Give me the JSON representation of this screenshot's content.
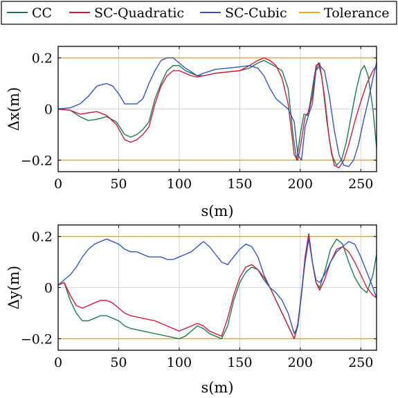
{
  "legend": {
    "entries": [
      {
        "name": "CC",
        "color": "#1a7a4c"
      },
      {
        "name": "SC-Quadratic",
        "color": "#d6173a"
      },
      {
        "name": "SC-Cubic",
        "color": "#2f55c4"
      },
      {
        "name": "Tolerance",
        "color": "#f2a516"
      }
    ]
  },
  "chart_data": [
    {
      "type": "line",
      "xlabel": "s(m)",
      "ylabel": "Δx(m)",
      "xlim": [
        0,
        263
      ],
      "ylim": [
        -0.245,
        0.245
      ],
      "xticks": [
        0,
        50,
        100,
        150,
        200,
        250
      ],
      "xtick_labels": [
        "0",
        "50",
        "100",
        "150",
        "200",
        "250"
      ],
      "yticks": [
        -0.2,
        0,
        0.2
      ],
      "ytick_labels": [
        "−0.2",
        "0",
        "0.2"
      ],
      "grid": true,
      "tolerance": [
        0.2,
        -0.2
      ],
      "series": [
        {
          "name": "CC",
          "color": "#1a7a4c",
          "x": [
            0,
            10,
            18,
            25,
            32,
            40,
            48,
            55,
            60,
            65,
            70,
            75,
            80,
            85,
            90,
            95,
            100,
            105,
            110,
            115,
            120,
            130,
            140,
            150,
            158,
            165,
            170,
            178,
            185,
            190,
            194,
            197,
            200,
            203,
            206,
            208,
            212,
            215,
            218,
            222,
            226,
            230,
            234,
            238,
            242,
            246,
            250,
            253,
            256,
            260,
            263
          ],
          "y": [
            0,
            -0.005,
            -0.03,
            -0.045,
            -0.04,
            -0.03,
            -0.05,
            -0.1,
            -0.11,
            -0.1,
            -0.08,
            -0.05,
            0.04,
            0.1,
            0.15,
            0.17,
            0.17,
            0.15,
            0.14,
            0.13,
            0.13,
            0.14,
            0.145,
            0.15,
            0.16,
            0.18,
            0.19,
            0.17,
            0.15,
            0.08,
            -0.1,
            -0.2,
            -0.1,
            -0.02,
            -0.025,
            0.02,
            0.14,
            0.18,
            0.12,
            -0.05,
            -0.18,
            -0.22,
            -0.2,
            -0.13,
            -0.03,
            0.07,
            0.15,
            0.17,
            0.13,
            0.0,
            -0.15
          ]
        },
        {
          "name": "SC-Quadratic",
          "color": "#d6173a",
          "x": [
            0,
            10,
            18,
            25,
            32,
            40,
            48,
            55,
            60,
            65,
            70,
            75,
            80,
            85,
            90,
            95,
            100,
            105,
            110,
            115,
            120,
            130,
            140,
            150,
            158,
            165,
            170,
            175,
            180,
            185,
            190,
            195,
            198,
            201,
            204,
            207,
            210,
            213,
            216,
            220,
            224,
            228,
            232,
            236,
            240,
            245,
            250,
            255,
            260,
            263
          ],
          "y": [
            0,
            -0.005,
            -0.02,
            -0.015,
            -0.01,
            -0.025,
            -0.06,
            -0.12,
            -0.13,
            -0.12,
            -0.1,
            -0.07,
            0.02,
            0.09,
            0.13,
            0.15,
            0.15,
            0.14,
            0.13,
            0.125,
            0.13,
            0.14,
            0.145,
            0.15,
            0.17,
            0.19,
            0.2,
            0.19,
            0.17,
            0.12,
            0.02,
            -0.18,
            -0.2,
            -0.12,
            -0.03,
            -0.01,
            0.05,
            0.17,
            0.18,
            0.05,
            -0.12,
            -0.22,
            -0.23,
            -0.2,
            -0.14,
            -0.05,
            0.03,
            0.1,
            0.15,
            0.17
          ]
        },
        {
          "name": "SC-Cubic",
          "color": "#2f55c4",
          "x": [
            0,
            10,
            18,
            25,
            32,
            40,
            45,
            50,
            55,
            60,
            65,
            70,
            75,
            80,
            85,
            90,
            95,
            100,
            105,
            110,
            115,
            120,
            130,
            140,
            150,
            158,
            165,
            170,
            175,
            180,
            185,
            190,
            195,
            198,
            201,
            204,
            207,
            210,
            213,
            216,
            220,
            224,
            228,
            232,
            236,
            240,
            244,
            248,
            252,
            256,
            260,
            263
          ],
          "y": [
            0,
            0.005,
            0.02,
            0.05,
            0.09,
            0.1,
            0.09,
            0.06,
            0.02,
            0.02,
            0.02,
            0.04,
            0.1,
            0.15,
            0.19,
            0.2,
            0.2,
            0.18,
            0.16,
            0.145,
            0.13,
            0.14,
            0.155,
            0.16,
            0.165,
            0.17,
            0.16,
            0.13,
            0.08,
            0.04,
            0.02,
            0.0,
            -0.05,
            -0.18,
            -0.2,
            -0.07,
            -0.02,
            0.02,
            0.15,
            0.17,
            0.15,
            0.05,
            -0.08,
            -0.18,
            -0.22,
            -0.225,
            -0.2,
            -0.14,
            -0.05,
            0.03,
            0.12,
            0.18
          ]
        },
        {
          "name": "Tolerance",
          "color": "#f2a516",
          "x": [
            0,
            263
          ],
          "y": [
            0.2,
            0.2
          ]
        }
      ]
    },
    {
      "type": "line",
      "xlabel": "s(m)",
      "ylabel": "Δy(m)",
      "xlim": [
        0,
        263
      ],
      "ylim": [
        -0.245,
        0.245
      ],
      "xticks": [
        0,
        50,
        100,
        150,
        200,
        250
      ],
      "xtick_labels": [
        "0",
        "50",
        "100",
        "150",
        "200",
        "250"
      ],
      "yticks": [
        -0.2,
        0,
        0.2
      ],
      "ytick_labels": [
        "−0.2",
        "0",
        "0.2"
      ],
      "grid": true,
      "tolerance": [
        0.2,
        -0.2
      ],
      "series": [
        {
          "name": "CC",
          "color": "#1a7a4c",
          "x": [
            0,
            5,
            10,
            15,
            20,
            25,
            30,
            35,
            40,
            45,
            50,
            55,
            60,
            70,
            80,
            90,
            100,
            105,
            110,
            115,
            120,
            125,
            130,
            135,
            140,
            145,
            150,
            155,
            160,
            165,
            170,
            175,
            180,
            185,
            190,
            195,
            198,
            201,
            204,
            207,
            210,
            213,
            216,
            220,
            225,
            230,
            235,
            240,
            245,
            250,
            255,
            260,
            263
          ],
          "y": [
            0.01,
            0.02,
            -0.05,
            -0.1,
            -0.13,
            -0.13,
            -0.12,
            -0.11,
            -0.11,
            -0.12,
            -0.13,
            -0.15,
            -0.16,
            -0.17,
            -0.18,
            -0.19,
            -0.2,
            -0.19,
            -0.17,
            -0.15,
            -0.16,
            -0.18,
            -0.19,
            -0.2,
            -0.15,
            -0.05,
            0.02,
            0.06,
            0.08,
            0.07,
            0.03,
            0.0,
            -0.05,
            -0.1,
            -0.15,
            -0.2,
            -0.15,
            -0.03,
            0.12,
            0.21,
            0.1,
            0.02,
            0.0,
            0.06,
            0.15,
            0.19,
            0.17,
            0.1,
            0.04,
            0.0,
            -0.02,
            0.05,
            0.13
          ]
        },
        {
          "name": "SC-Quadratic",
          "color": "#d6173a",
          "x": [
            0,
            5,
            10,
            15,
            20,
            25,
            30,
            35,
            40,
            45,
            50,
            55,
            60,
            70,
            80,
            90,
            100,
            105,
            110,
            115,
            120,
            125,
            130,
            135,
            140,
            145,
            150,
            155,
            160,
            165,
            170,
            175,
            180,
            185,
            190,
            195,
            198,
            201,
            204,
            207,
            210,
            213,
            216,
            220,
            225,
            230,
            235,
            240,
            245,
            250,
            255,
            260,
            263
          ],
          "y": [
            0.01,
            0.02,
            -0.03,
            -0.07,
            -0.08,
            -0.07,
            -0.06,
            -0.05,
            -0.05,
            -0.06,
            -0.08,
            -0.1,
            -0.11,
            -0.12,
            -0.13,
            -0.15,
            -0.17,
            -0.16,
            -0.15,
            -0.14,
            -0.15,
            -0.17,
            -0.18,
            -0.19,
            -0.12,
            -0.03,
            0.04,
            0.08,
            0.09,
            0.07,
            0.04,
            0.0,
            -0.05,
            -0.1,
            -0.15,
            -0.2,
            -0.14,
            -0.02,
            0.12,
            0.21,
            0.1,
            0.02,
            -0.01,
            0.03,
            0.1,
            0.15,
            0.16,
            0.14,
            0.1,
            0.05,
            0.0,
            -0.03,
            -0.04
          ]
        },
        {
          "name": "SC-Cubic",
          "color": "#2f55c4",
          "x": [
            0,
            5,
            10,
            15,
            20,
            25,
            30,
            35,
            40,
            45,
            50,
            55,
            60,
            65,
            70,
            75,
            80,
            85,
            90,
            95,
            100,
            105,
            110,
            115,
            120,
            125,
            130,
            135,
            140,
            145,
            150,
            155,
            160,
            165,
            170,
            175,
            180,
            185,
            190,
            195,
            198,
            201,
            204,
            207,
            210,
            213,
            216,
            220,
            225,
            230,
            235,
            240,
            245,
            250,
            255,
            260,
            263
          ],
          "y": [
            0.01,
            0.03,
            0.05,
            0.08,
            0.12,
            0.15,
            0.17,
            0.18,
            0.19,
            0.18,
            0.17,
            0.15,
            0.14,
            0.14,
            0.13,
            0.12,
            0.12,
            0.12,
            0.11,
            0.11,
            0.12,
            0.13,
            0.14,
            0.16,
            0.18,
            0.16,
            0.13,
            0.1,
            0.09,
            0.12,
            0.15,
            0.17,
            0.16,
            0.12,
            0.05,
            0.0,
            -0.02,
            -0.05,
            -0.1,
            -0.18,
            -0.15,
            -0.02,
            0.1,
            0.19,
            0.1,
            0.03,
            0.02,
            0.05,
            0.1,
            0.14,
            0.16,
            0.18,
            0.17,
            0.12,
            0.06,
            0.0,
            -0.04
          ]
        },
        {
          "name": "Tolerance",
          "color": "#f2a516",
          "x": [
            0,
            263
          ],
          "y": [
            0.2,
            0.2
          ]
        }
      ]
    }
  ]
}
